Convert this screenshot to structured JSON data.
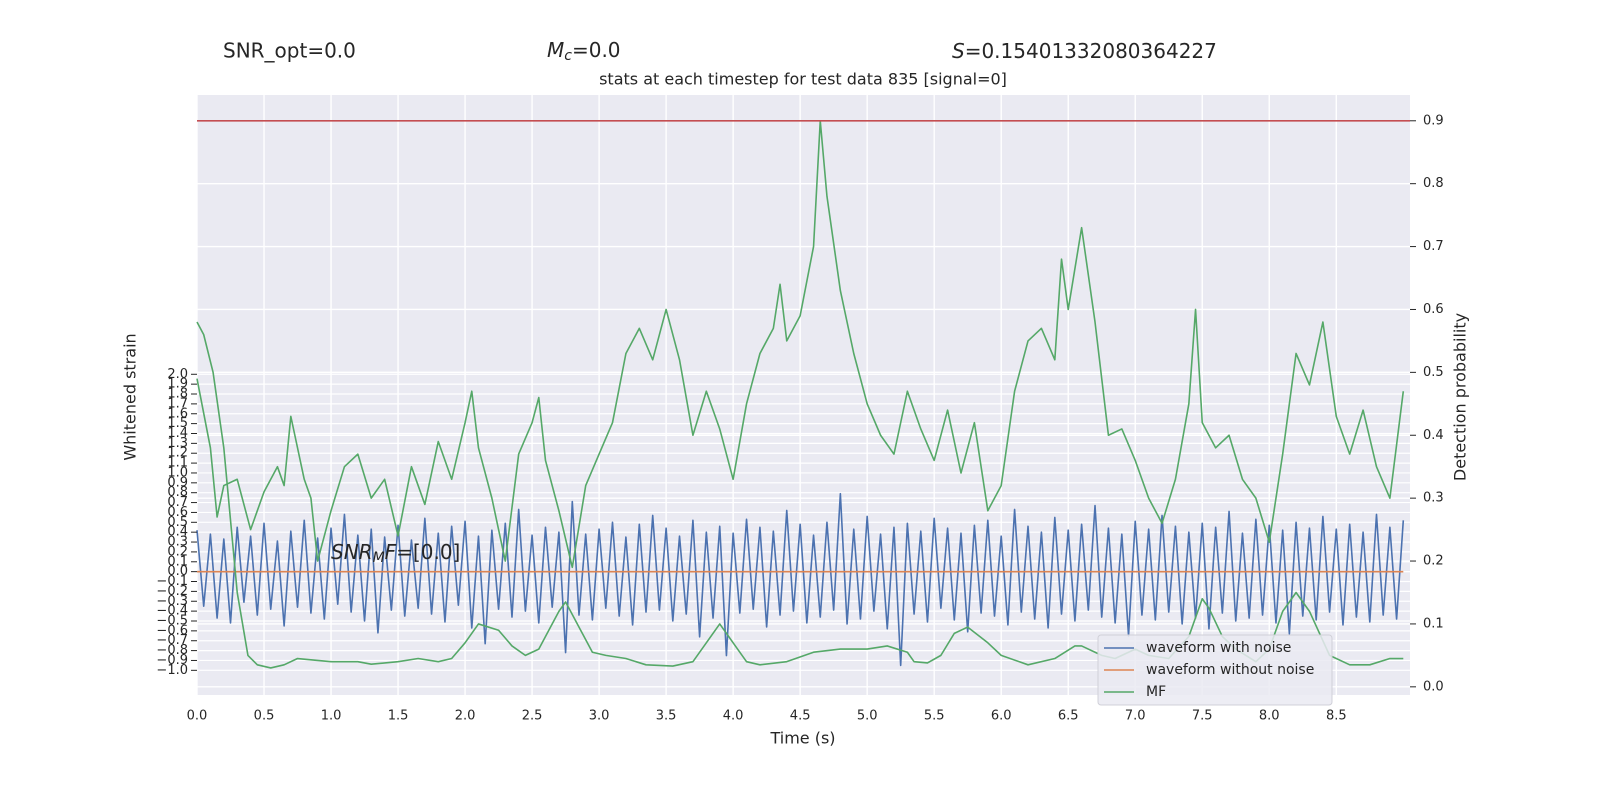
{
  "chart_data": {
    "type": "line",
    "header": [
      {
        "text": "SNR_opt=0.0"
      },
      {
        "symbol": "M",
        "sub": "c",
        "rest": "=0.0"
      },
      {
        "symbol": "S",
        "rest": "=0.15401332080364227"
      }
    ],
    "title": "stats at each timestep for test data 835 [signal=0]",
    "annotation": {
      "symbol": "SNR",
      "sub": "M",
      "symbol2": "F",
      "rest": "=[0.0]"
    },
    "xlabel": "Time (s)",
    "ylabel": "Whitened strain",
    "y2label": "Detection probability",
    "xlim": [
      0,
      9.05
    ],
    "ylim": [
      -1.25,
      4.83
    ],
    "y2lim": [
      -0.013,
      0.941
    ],
    "xticks": [
      {
        "value": 0,
        "label": "0.0"
      },
      0.5,
      {
        "value": 1,
        "label": "1.0"
      },
      1.5,
      {
        "value": 2,
        "label": "2.0"
      },
      2.5,
      {
        "value": 3,
        "label": "3.0"
      },
      3.5,
      {
        "value": 4,
        "label": "4.0"
      },
      4.5,
      {
        "value": 5,
        "label": "5.0"
      },
      5.5,
      {
        "value": 6,
        "label": "6.0"
      },
      6.5,
      {
        "value": 7,
        "label": "7.0"
      },
      7.5,
      {
        "value": 8,
        "label": "8.0"
      },
      8.5
    ],
    "yticks": [
      {
        "value": -1,
        "label": "−1.0"
      },
      {
        "value": -0.9,
        "label": "−0.9"
      },
      {
        "value": -0.8,
        "label": "−0.8"
      },
      {
        "value": -0.7,
        "label": "−0.7"
      },
      {
        "value": -0.6,
        "label": "−0.6"
      },
      {
        "value": -0.5,
        "label": "−0.5"
      },
      {
        "value": -0.4,
        "label": "−0.4"
      },
      {
        "value": -0.3,
        "label": "−0.3"
      },
      {
        "value": -0.2,
        "label": "−0.2"
      },
      {
        "value": -0.1,
        "label": "−0.1"
      },
      {
        "value": 0,
        "label": "0.0"
      },
      0.1,
      0.2,
      0.3,
      0.4,
      0.5,
      0.6,
      0.7,
      0.8,
      0.9,
      {
        "value": 1,
        "label": "1.0"
      },
      1.1,
      1.2,
      1.3,
      1.4,
      1.5,
      1.6,
      1.7,
      1.8,
      1.9,
      {
        "value": 2,
        "label": "2.0"
      }
    ],
    "y2ticks": [
      {
        "value": 0,
        "label": "0.0"
      },
      0.1,
      0.2,
      0.3,
      0.4,
      0.5,
      0.6,
      0.7,
      0.8,
      0.9
    ],
    "grid": true,
    "legend": "lower right",
    "hlines": [
      {
        "y": 0.9,
        "axis": "y2",
        "color": "#c44e52"
      }
    ],
    "series": [
      {
        "name": "waveform with noise",
        "color": "#4c72b0",
        "axis": "y",
        "x": [
          0,
          0.05,
          0.1,
          0.15,
          0.2,
          0.25,
          0.3,
          0.35,
          0.4,
          0.45,
          0.5,
          0.55,
          0.6,
          0.65,
          0.7,
          0.75,
          0.8,
          0.85,
          0.9,
          0.95,
          1,
          1.05,
          1.1,
          1.15,
          1.2,
          1.25,
          1.3,
          1.35,
          1.4,
          1.45,
          1.5,
          1.55,
          1.6,
          1.65,
          1.7,
          1.75,
          1.8,
          1.85,
          1.9,
          1.95,
          2,
          2.05,
          2.1,
          2.15,
          2.2,
          2.25,
          2.3,
          2.35,
          2.4,
          2.45,
          2.5,
          2.55,
          2.6,
          2.65,
          2.7,
          2.75,
          2.8,
          2.85,
          2.9,
          2.95,
          3,
          3.05,
          3.1,
          3.15,
          3.2,
          3.25,
          3.3,
          3.35,
          3.4,
          3.45,
          3.5,
          3.55,
          3.6,
          3.65,
          3.7,
          3.75,
          3.8,
          3.85,
          3.9,
          3.95,
          4,
          4.05,
          4.1,
          4.15,
          4.2,
          4.25,
          4.3,
          4.35,
          4.4,
          4.45,
          4.5,
          4.55,
          4.6,
          4.65,
          4.7,
          4.75,
          4.8,
          4.85,
          4.9,
          4.95,
          5,
          5.05,
          5.1,
          5.15,
          5.2,
          5.25,
          5.3,
          5.35,
          5.4,
          5.45,
          5.5,
          5.55,
          5.6,
          5.65,
          5.7,
          5.75,
          5.8,
          5.85,
          5.9,
          5.95,
          6,
          6.05,
          6.1,
          6.15,
          6.2,
          6.25,
          6.3,
          6.35,
          6.4,
          6.45,
          6.5,
          6.55,
          6.6,
          6.65,
          6.7,
          6.75,
          6.8,
          6.85,
          6.9,
          6.95,
          7,
          7.05,
          7.1,
          7.15,
          7.2,
          7.25,
          7.3,
          7.35,
          7.4,
          7.45,
          7.5,
          7.55,
          7.6,
          7.65,
          7.7,
          7.75,
          7.8,
          7.85,
          7.9,
          7.95,
          8,
          8.05,
          8.1,
          8.15,
          8.2,
          8.25,
          8.3,
          8.35,
          8.4,
          8.45,
          8.5,
          8.55,
          8.6,
          8.65,
          8.7,
          8.75,
          8.8,
          8.85,
          8.9,
          8.95,
          9
        ],
        "values": [
          0.42,
          -0.35,
          0.38,
          -0.47,
          0.33,
          -0.52,
          0.45,
          -0.31,
          0.36,
          -0.44,
          0.49,
          -0.38,
          0.31,
          -0.55,
          0.41,
          -0.36,
          0.52,
          -0.42,
          0.34,
          -0.48,
          0.44,
          -0.33,
          0.58,
          -0.41,
          0.37,
          -0.5,
          0.43,
          -0.62,
          0.35,
          -0.39,
          0.47,
          -0.45,
          0.32,
          -0.37,
          0.54,
          -0.43,
          0.39,
          -0.51,
          0.46,
          -0.34,
          0.51,
          -0.57,
          0.36,
          -0.73,
          0.42,
          -0.38,
          0.49,
          -0.46,
          0.63,
          -0.4,
          0.37,
          -0.52,
          0.45,
          -0.36,
          0.4,
          -0.82,
          0.71,
          -0.44,
          0.38,
          -0.49,
          0.43,
          -0.37,
          0.5,
          -0.45,
          0.35,
          -0.54,
          0.48,
          -0.41,
          0.57,
          -0.39,
          0.44,
          -0.5,
          0.36,
          -0.43,
          0.52,
          -0.66,
          0.4,
          -0.47,
          0.46,
          -0.85,
          0.39,
          -0.42,
          0.53,
          -0.38,
          0.45,
          -0.56,
          0.41,
          -0.44,
          0.62,
          -0.4,
          0.48,
          -0.52,
          0.37,
          -0.46,
          0.5,
          -0.39,
          0.79,
          -0.53,
          0.43,
          -0.48,
          0.56,
          -0.4,
          0.38,
          -0.58,
          0.45,
          -0.95,
          0.49,
          -0.43,
          0.41,
          -0.51,
          0.54,
          -0.37,
          0.44,
          -0.49,
          0.39,
          -0.61,
          0.47,
          -0.42,
          0.52,
          -0.45,
          0.36,
          -0.54,
          0.63,
          -0.41,
          0.46,
          -0.48,
          0.4,
          -0.57,
          0.55,
          -0.43,
          0.42,
          -0.5,
          0.48,
          -0.39,
          0.67,
          -0.46,
          0.44,
          -0.52,
          0.38,
          -0.65,
          0.51,
          -0.44,
          0.43,
          -0.49,
          0.57,
          -0.41,
          0.46,
          -0.53,
          0.4,
          -0.47,
          0.49,
          -0.58,
          0.45,
          -0.42,
          0.61,
          -0.5,
          0.39,
          -0.47,
          0.53,
          -0.44,
          0.47,
          -0.52,
          0.42,
          -0.63,
          0.5,
          -0.45,
          0.44,
          -0.49,
          0.56,
          -0.41,
          0.43,
          -0.54,
          0.48,
          -0.46,
          0.4,
          -0.51,
          0.58,
          -0.44,
          0.45,
          -0.48,
          0.52
        ]
      },
      {
        "name": "waveform without noise",
        "color": "#dd8452",
        "axis": "y",
        "x": [
          0,
          9
        ],
        "values": [
          0,
          0
        ]
      },
      {
        "name": "MF",
        "color": "#55a868",
        "axis": "y2",
        "x": [
          0,
          0.05,
          0.12,
          0.2,
          0.3,
          0.38,
          0.45,
          0.55,
          0.65,
          0.75,
          0.85,
          1,
          1.2,
          1.3,
          1.5,
          1.65,
          1.8,
          1.9,
          2,
          2.1,
          2.25,
          2.35,
          2.45,
          2.55,
          2.7,
          2.75,
          2.85,
          2.95,
          3.05,
          3.2,
          3.35,
          3.55,
          3.7,
          3.8,
          3.9,
          4,
          4.1,
          4.2,
          4.4,
          4.6,
          4.8,
          5,
          5.15,
          5.3,
          5.35,
          5.45,
          5.55,
          5.65,
          5.75,
          5.9,
          6,
          6.2,
          6.4,
          6.55,
          6.6,
          6.75,
          6.85,
          7,
          7.1,
          7.25,
          7.4,
          7.5,
          7.55,
          7.65,
          7.75,
          7.9,
          8,
          8.1,
          8.2,
          8.3,
          8.45,
          8.6,
          8.75,
          8.9,
          9
        ],
        "values": [
          0.58,
          0.56,
          0.5,
          0.38,
          0.15,
          0.05,
          0.035,
          0.03,
          0.035,
          0.045,
          0.043,
          0.04,
          0.04,
          0.036,
          0.04,
          0.045,
          0.04,
          0.045,
          0.07,
          0.1,
          0.09,
          0.065,
          0.05,
          0.06,
          0.12,
          0.135,
          0.095,
          0.055,
          0.05,
          0.045,
          0.035,
          0.033,
          0.04,
          0.07,
          0.1,
          0.07,
          0.04,
          0.035,
          0.04,
          0.055,
          0.06,
          0.06,
          0.065,
          0.055,
          0.04,
          0.038,
          0.05,
          0.085,
          0.095,
          0.07,
          0.05,
          0.035,
          0.045,
          0.065,
          0.065,
          0.05,
          0.045,
          0.06,
          0.05,
          0.045,
          0.08,
          0.14,
          0.125,
          0.08,
          0.06,
          0.04,
          0.06,
          0.12,
          0.15,
          0.12,
          0.05,
          0.035,
          0.035,
          0.045,
          0.045
        ]
      },
      {
        "color": "#55a868",
        "axis": "y2",
        "x": [
          0,
          0.1,
          0.15,
          0.2,
          0.3,
          0.4,
          0.5,
          0.6,
          0.65,
          0.7,
          0.8,
          0.85,
          0.9,
          1,
          1.1,
          1.2,
          1.3,
          1.4,
          1.5,
          1.6,
          1.7,
          1.8,
          1.9,
          2,
          2.05,
          2.1,
          2.2,
          2.3,
          2.4,
          2.5,
          2.55,
          2.6,
          2.7,
          2.8,
          2.9,
          3,
          3.1,
          3.2,
          3.3,
          3.4,
          3.5,
          3.6,
          3.7,
          3.8,
          3.9,
          4,
          4.1,
          4.2,
          4.3,
          4.35,
          4.4,
          4.5,
          4.6,
          4.65,
          4.7,
          4.8,
          4.9,
          5,
          5.1,
          5.2,
          5.3,
          5.4,
          5.5,
          5.6,
          5.7,
          5.8,
          5.9,
          6,
          6.1,
          6.2,
          6.3,
          6.4,
          6.45,
          6.5,
          6.6,
          6.7,
          6.8,
          6.9,
          7,
          7.1,
          7.2,
          7.3,
          7.4,
          7.45,
          7.5,
          7.6,
          7.7,
          7.8,
          7.9,
          8,
          8.1,
          8.2,
          8.3,
          8.4,
          8.5,
          8.6,
          8.7,
          8.8,
          8.9,
          9
        ],
        "values": [
          0.49,
          0.38,
          0.27,
          0.32,
          0.33,
          0.25,
          0.31,
          0.35,
          0.32,
          0.43,
          0.33,
          0.3,
          0.2,
          0.28,
          0.35,
          0.37,
          0.3,
          0.33,
          0.24,
          0.35,
          0.29,
          0.39,
          0.33,
          0.42,
          0.47,
          0.38,
          0.3,
          0.2,
          0.37,
          0.42,
          0.46,
          0.36,
          0.28,
          0.19,
          0.32,
          0.37,
          0.42,
          0.53,
          0.57,
          0.52,
          0.6,
          0.52,
          0.4,
          0.47,
          0.41,
          0.33,
          0.45,
          0.53,
          0.57,
          0.64,
          0.55,
          0.59,
          0.7,
          0.9,
          0.78,
          0.63,
          0.53,
          0.45,
          0.4,
          0.37,
          0.47,
          0.41,
          0.36,
          0.44,
          0.34,
          0.42,
          0.28,
          0.32,
          0.47,
          0.55,
          0.57,
          0.52,
          0.68,
          0.6,
          0.73,
          0.58,
          0.4,
          0.41,
          0.36,
          0.3,
          0.26,
          0.33,
          0.45,
          0.6,
          0.42,
          0.38,
          0.4,
          0.33,
          0.3,
          0.23,
          0.37,
          0.53,
          0.48,
          0.58,
          0.43,
          0.37,
          0.44,
          0.35,
          0.3,
          0.47
        ]
      }
    ]
  }
}
